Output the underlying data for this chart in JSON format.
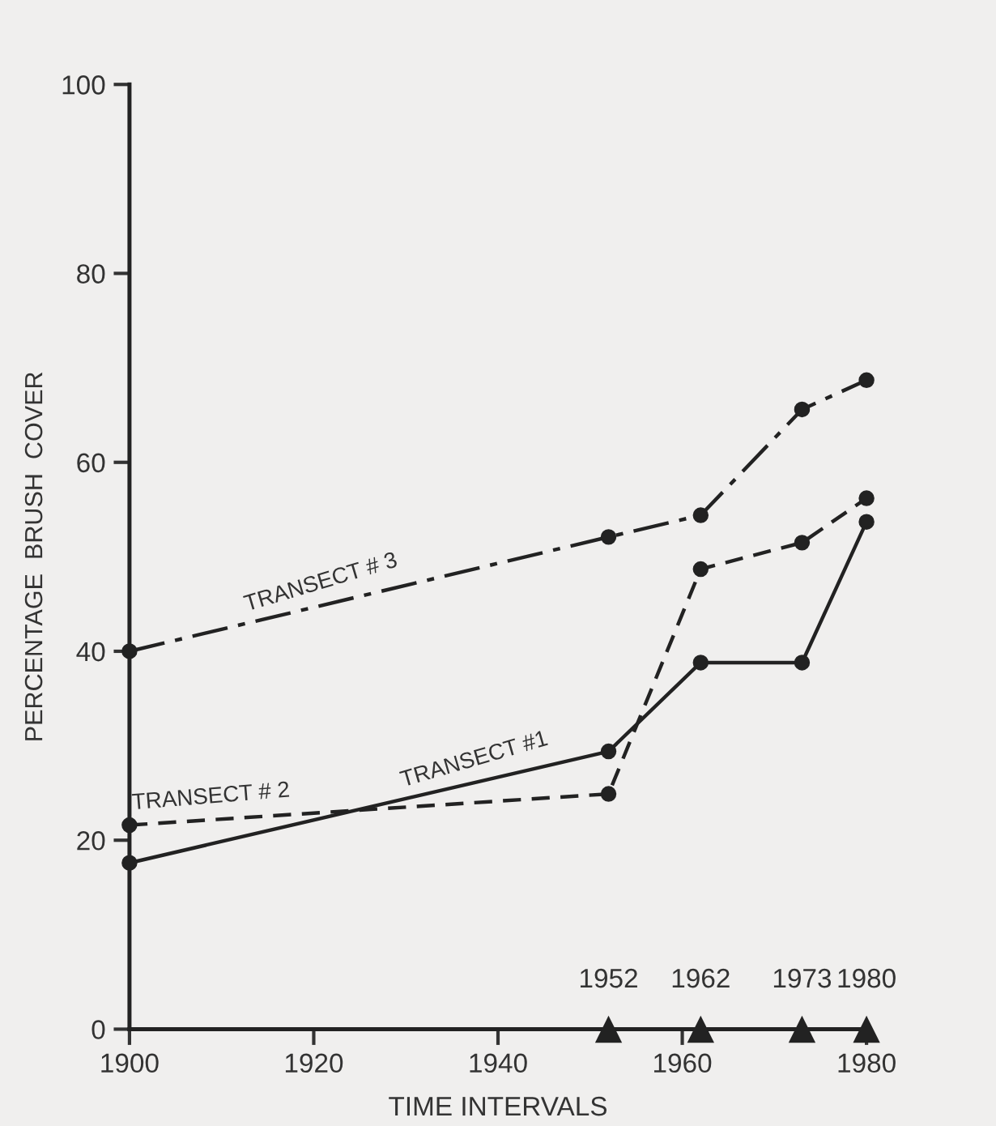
{
  "chart_data": {
    "type": "line",
    "xlabel": "TIME INTERVALS",
    "ylabel": "PERCENTAGE  BRUSH  COVER",
    "x": [
      1900,
      1952,
      1962,
      1973,
      1980
    ],
    "series": [
      {
        "name": "TRANSECT #1",
        "color": "#222222",
        "line_style": "solid",
        "values": [
          17.6,
          29.4,
          38.8,
          38.8,
          53.7
        ]
      },
      {
        "name": "TRANSECT # 2",
        "color": "#222222",
        "line_style": "dashed",
        "values": [
          21.6,
          24.9,
          48.7,
          51.5,
          56.2
        ]
      },
      {
        "name": "TRANSECT # 3",
        "color": "#222222",
        "line_style": "dashdot",
        "values": [
          40,
          52.1,
          54.4,
          65.6,
          68.7
        ]
      }
    ],
    "marker": "circle",
    "xlim": [
      1900,
      1980
    ],
    "xticks": [
      1900,
      1920,
      1940,
      1960,
      1980
    ],
    "ylim": [
      0,
      100
    ],
    "yticks": [
      0,
      20,
      40,
      60,
      80,
      100
    ],
    "grid": false,
    "legend": false,
    "annotations": [
      {
        "text": "1952",
        "x": 1952,
        "y": 0
      },
      {
        "text": "1962",
        "x": 1962,
        "y": 0
      },
      {
        "text": "1973",
        "x": 1973,
        "y": 0
      },
      {
        "text": "1980",
        "x": 1980,
        "y": 0
      }
    ]
  }
}
